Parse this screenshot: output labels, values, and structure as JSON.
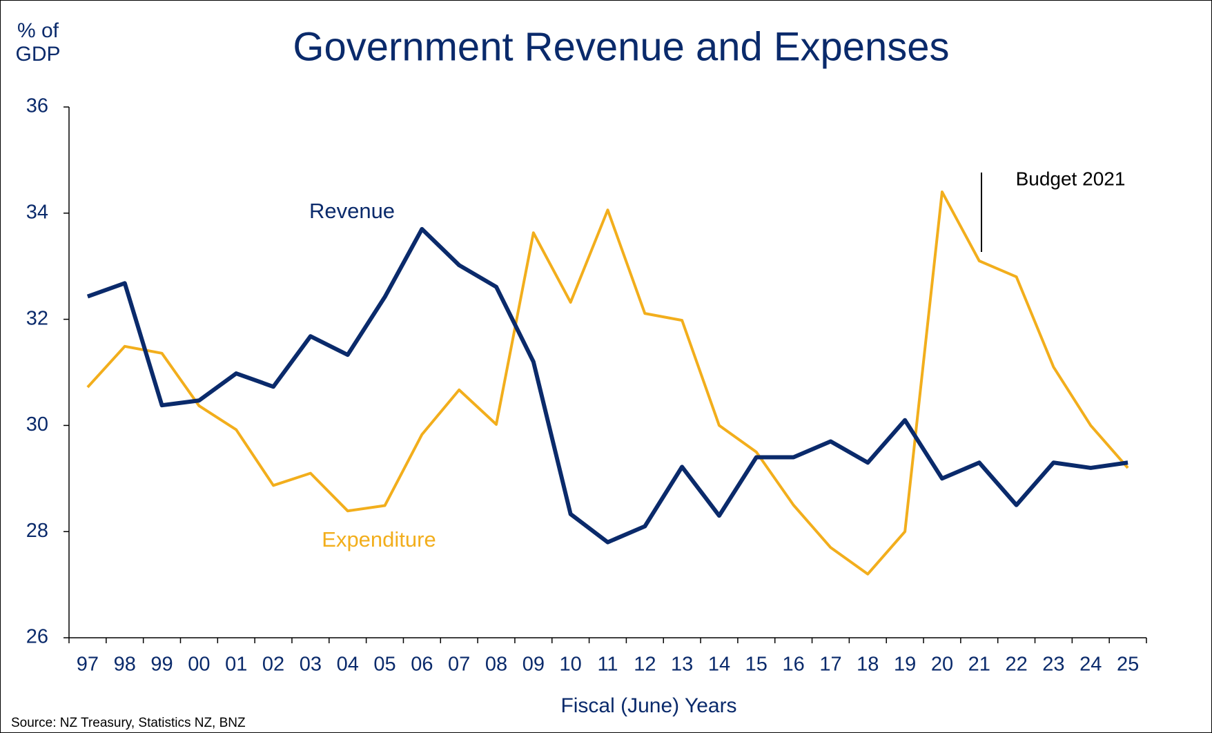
{
  "chart_data": {
    "type": "line",
    "title": "Government Revenue and Expenses",
    "y_label": "% of GDP",
    "x_label": "Fiscal (June) Years",
    "source": "Source: NZ Treasury, Statistics NZ, BNZ",
    "categories": [
      "97",
      "98",
      "99",
      "00",
      "01",
      "02",
      "03",
      "04",
      "05",
      "06",
      "07",
      "08",
      "09",
      "10",
      "11",
      "12",
      "13",
      "14",
      "15",
      "16",
      "17",
      "18",
      "19",
      "20",
      "21",
      "22",
      "23",
      "24",
      "25"
    ],
    "series": [
      {
        "name": "Revenue",
        "color": "#0a2a6b",
        "width": 6,
        "values": [
          32.43,
          32.68,
          30.38,
          30.47,
          30.98,
          30.73,
          31.68,
          31.33,
          32.42,
          33.7,
          33.02,
          32.61,
          31.2,
          28.33,
          27.8,
          28.1,
          29.22,
          28.3,
          29.4,
          29.4,
          29.7,
          29.3,
          30.1,
          29.0,
          29.3,
          28.5,
          29.3,
          29.2,
          29.3
        ]
      },
      {
        "name": "Expenditure",
        "color": "#f2ae1c",
        "width": 4,
        "values": [
          30.72,
          31.49,
          31.36,
          30.37,
          29.92,
          28.87,
          29.1,
          28.39,
          28.49,
          29.83,
          30.67,
          30.02,
          33.63,
          32.32,
          34.06,
          32.11,
          31.98,
          30.0,
          29.5,
          28.5,
          27.7,
          27.2,
          28.0,
          34.4,
          33.1,
          32.8,
          31.1,
          30.0,
          29.2
        ]
      }
    ],
    "annotation": "Budget 2021",
    "ylim": [
      26,
      36
    ],
    "yticks": [
      26,
      28,
      30,
      32,
      34,
      36
    ],
    "grid": false
  }
}
